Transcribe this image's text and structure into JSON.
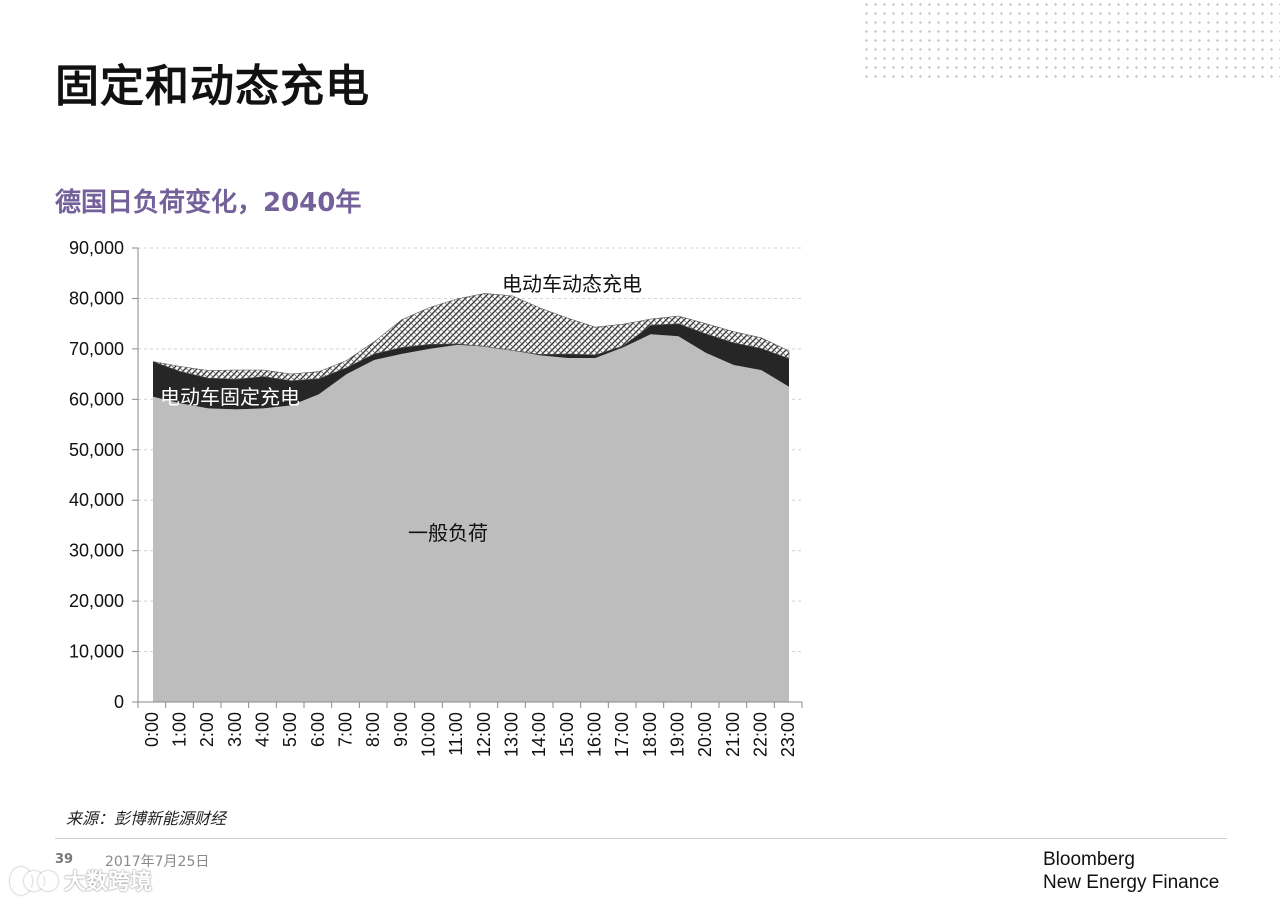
{
  "slide": {
    "title": "固定和动态充电",
    "page_number": "39",
    "date": "2017年7月25日",
    "source": "来源：彭博新能源财经",
    "brand_line1": "Bloomberg",
    "brand_line2": "New Energy Finance",
    "watermark_text": "大数跨境"
  },
  "colors": {
    "subtitle": "#74619a",
    "general_load": "#bdbdbd",
    "fixed_charging": "#262626",
    "dynamic_charging": "hatched-gray"
  },
  "chart_data": {
    "type": "area",
    "stacked": true,
    "title": "德国日负荷变化，2040年",
    "xlabel": "",
    "ylabel": "",
    "ylim": [
      0,
      90000
    ],
    "yticks": [
      0,
      10000,
      20000,
      30000,
      40000,
      50000,
      60000,
      70000,
      80000,
      90000
    ],
    "ytick_labels": [
      "0",
      "10,000",
      "20,000",
      "30,000",
      "40,000",
      "50,000",
      "60,000",
      "70,000",
      "80,000",
      "90,000"
    ],
    "grid": true,
    "legend": "none",
    "categories": [
      "0:00",
      "1:00",
      "2:00",
      "3:00",
      "4:00",
      "5:00",
      "6:00",
      "7:00",
      "8:00",
      "9:00",
      "10:00",
      "11:00",
      "12:00",
      "13:00",
      "14:00",
      "15:00",
      "16:00",
      "17:00",
      "18:00",
      "19:00",
      "20:00",
      "21:00",
      "22:00",
      "23:00"
    ],
    "series": [
      {
        "name": "一般负荷",
        "values": [
          60500,
          59200,
          58200,
          58000,
          58200,
          58800,
          61000,
          65000,
          67800,
          69000,
          70000,
          70800,
          70500,
          69700,
          68700,
          68200,
          68200,
          70300,
          72900,
          72500,
          69200,
          66800,
          65800,
          62500
        ]
      },
      {
        "name": "电动车固定充电",
        "values": [
          7000,
          6300,
          6000,
          6000,
          6300,
          4900,
          3100,
          1300,
          1200,
          1300,
          900,
          200,
          0,
          0,
          200,
          800,
          600,
          300,
          1800,
          2500,
          3800,
          4400,
          4300,
          5600
        ]
      },
      {
        "name": "电动车动态充电",
        "values": [
          0,
          1000,
          1500,
          1800,
          1300,
          1300,
          1400,
          1400,
          2400,
          5500,
          7300,
          8900,
          10500,
          10800,
          9200,
          7100,
          5500,
          4300,
          1200,
          1500,
          2000,
          2200,
          2100,
          1500
        ]
      }
    ],
    "annotations": [
      "电动车动态充电",
      "电动车固定充电",
      "一般负荷"
    ]
  }
}
